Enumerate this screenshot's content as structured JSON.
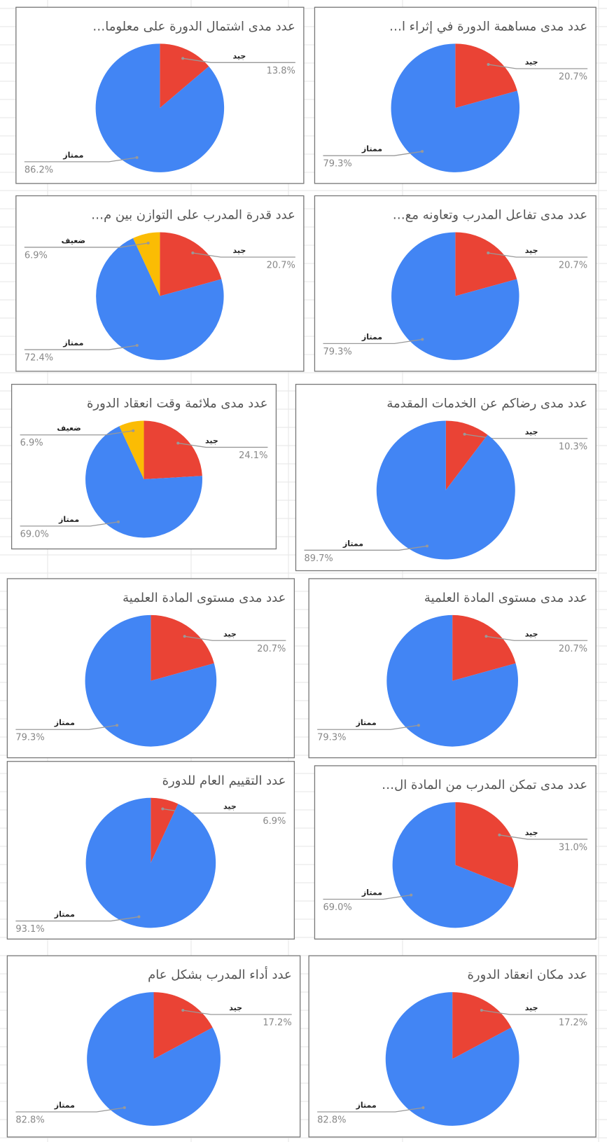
{
  "chart_data": [
    {
      "type": "pie",
      "title": "عدد مدى اشتمال الدورة على معلوما…",
      "categories": [
        "جيد",
        "ممتاز"
      ],
      "values": [
        13.8,
        86.2
      ],
      "value_labels": [
        "13.8%",
        "86.2%"
      ],
      "colors": [
        "#ea4335",
        "#4285f4"
      ]
    },
    {
      "type": "pie",
      "title": "عدد مدى مساهمة الدورة في إثراء ا…",
      "categories": [
        "جيد",
        "ممتاز"
      ],
      "values": [
        20.7,
        79.3
      ],
      "value_labels": [
        "20.7%",
        "79.3%"
      ],
      "colors": [
        "#ea4335",
        "#4285f4"
      ]
    },
    {
      "type": "pie",
      "title": "عدد قدرة المدرب على التوازن بين م…",
      "categories": [
        "جيد",
        "ممتاز",
        "ضعيف"
      ],
      "values": [
        20.7,
        72.4,
        6.9
      ],
      "value_labels": [
        "20.7%",
        "72.4%",
        "6.9%"
      ],
      "colors": [
        "#ea4335",
        "#4285f4",
        "#fbbc04"
      ]
    },
    {
      "type": "pie",
      "title": "عدد مدى تفاعل المدرب وتعاونه مع…",
      "categories": [
        "جيد",
        "ممتاز"
      ],
      "values": [
        20.7,
        79.3
      ],
      "value_labels": [
        "20.7%",
        "79.3%"
      ],
      "colors": [
        "#ea4335",
        "#4285f4"
      ]
    },
    {
      "type": "pie",
      "title": "عدد مدى ملائمة وقت انعقاد الدورة",
      "categories": [
        "جيد",
        "ممتاز",
        "ضعيف"
      ],
      "values": [
        24.1,
        69.0,
        6.9
      ],
      "value_labels": [
        "24.1%",
        "69.0%",
        "6.9%"
      ],
      "colors": [
        "#ea4335",
        "#4285f4",
        "#fbbc04"
      ]
    },
    {
      "type": "pie",
      "title": "عدد مدى رضاكم عن الخدمات المقدمة",
      "categories": [
        "جيد",
        "ممتاز"
      ],
      "values": [
        10.3,
        89.7
      ],
      "value_labels": [
        "10.3%",
        "89.7%"
      ],
      "colors": [
        "#ea4335",
        "#4285f4"
      ]
    },
    {
      "type": "pie",
      "title": "عدد مدى مستوى المادة العلمية",
      "categories": [
        "جيد",
        "ممتاز"
      ],
      "values": [
        20.7,
        79.3
      ],
      "value_labels": [
        "20.7%",
        "79.3%"
      ],
      "colors": [
        "#ea4335",
        "#4285f4"
      ]
    },
    {
      "type": "pie",
      "title": "عدد مدى مستوى المادة العلمية",
      "categories": [
        "جيد",
        "ممتاز"
      ],
      "values": [
        20.7,
        79.3
      ],
      "value_labels": [
        "20.7%",
        "79.3%"
      ],
      "colors": [
        "#ea4335",
        "#4285f4"
      ]
    },
    {
      "type": "pie",
      "title": "عدد التقييم العام للدورة",
      "categories": [
        "جيد",
        "ممتاز"
      ],
      "values": [
        6.9,
        93.1
      ],
      "value_labels": [
        "6.9%",
        "93.1%"
      ],
      "colors": [
        "#ea4335",
        "#4285f4"
      ]
    },
    {
      "type": "pie",
      "title": "عدد مدى تمكن المدرب من المادة ال…",
      "categories": [
        "جيد",
        "ممتاز"
      ],
      "values": [
        31.0,
        69.0
      ],
      "value_labels": [
        "31.0%",
        "69.0%"
      ],
      "colors": [
        "#ea4335",
        "#4285f4"
      ]
    },
    {
      "type": "pie",
      "title": "عدد أداء المدرب بشكل عام",
      "categories": [
        "جيد",
        "ممتاز"
      ],
      "values": [
        17.2,
        82.8
      ],
      "value_labels": [
        "17.2%",
        "82.8%"
      ],
      "colors": [
        "#ea4335",
        "#4285f4"
      ]
    },
    {
      "type": "pie",
      "title": "عدد مكان انعقاد الدورة",
      "categories": [
        "جيد",
        "ممتاز"
      ],
      "values": [
        17.2,
        82.8
      ],
      "value_labels": [
        "17.2%",
        "82.8%"
      ],
      "colors": [
        "#ea4335",
        "#4285f4"
      ]
    }
  ]
}
